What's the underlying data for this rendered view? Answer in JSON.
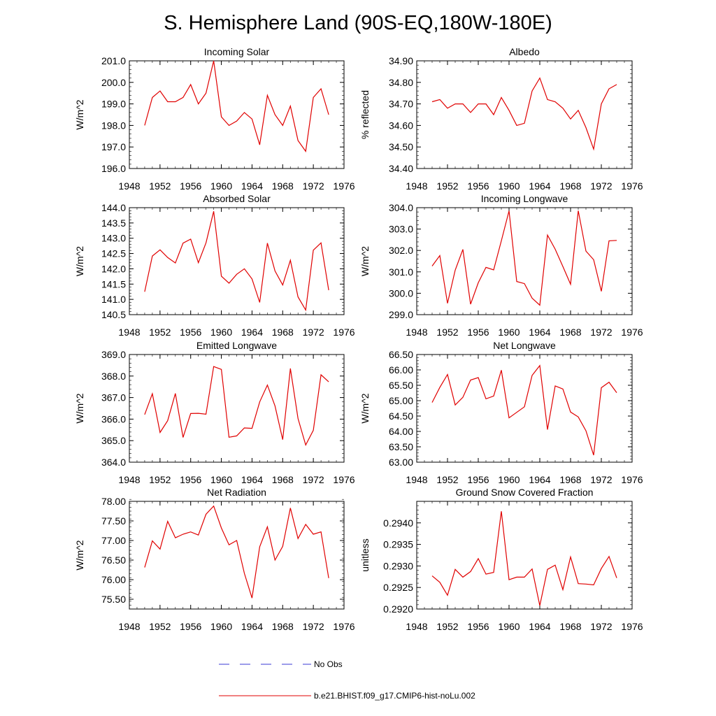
{
  "figure": {
    "title": "S. Hemisphere Land (90S-EQ,180W-180E)",
    "legend": [
      {
        "label": "No Obs",
        "color": "#3a3ad6",
        "style": "dashed"
      },
      {
        "label": "b.e21.BHIST.f09_g17.CMIP6-hist-noLu.002",
        "color": "#e00000",
        "style": "solid"
      }
    ]
  },
  "chart_data": [
    {
      "type": "line",
      "title": "Incoming Solar",
      "ylabel": "W/m^2",
      "xlim": [
        1948,
        1976
      ],
      "ylim": [
        196.0,
        201.0
      ],
      "x_ticks": [
        "1948",
        "1952",
        "1956",
        "1960",
        "1964",
        "1968",
        "1972",
        "1976"
      ],
      "y_ticks": [
        "196.0",
        "197.0",
        "198.0",
        "199.0",
        "200.0",
        "201.0"
      ],
      "series": [
        {
          "color": "#e00000",
          "x": [
            1950,
            1951,
            1952,
            1953,
            1954,
            1955,
            1956,
            1957,
            1958,
            1959,
            1960,
            1961,
            1962,
            1963,
            1964,
            1965,
            1966,
            1967,
            1968,
            1969,
            1970,
            1971,
            1972,
            1973,
            1974
          ],
          "y": [
            198.0,
            199.3,
            199.6,
            199.1,
            199.1,
            199.3,
            199.9,
            199.0,
            199.5,
            201.0,
            198.4,
            198.0,
            198.2,
            198.6,
            198.3,
            197.1,
            199.4,
            198.5,
            198.0,
            198.9,
            197.3,
            196.8,
            199.3,
            199.7,
            198.5
          ]
        }
      ]
    },
    {
      "type": "line",
      "title": "Albedo",
      "ylabel": "% reflected",
      "xlim": [
        1948,
        1976
      ],
      "ylim": [
        34.4,
        34.9
      ],
      "x_ticks": [
        "1948",
        "1952",
        "1956",
        "1960",
        "1964",
        "1968",
        "1972",
        "1976"
      ],
      "y_ticks": [
        "34.40",
        "34.50",
        "34.60",
        "34.70",
        "34.80",
        "34.90"
      ],
      "series": [
        {
          "color": "#e00000",
          "x": [
            1950,
            1951,
            1952,
            1953,
            1954,
            1955,
            1956,
            1957,
            1958,
            1959,
            1960,
            1961,
            1962,
            1963,
            1964,
            1965,
            1966,
            1967,
            1968,
            1969,
            1970,
            1971,
            1972,
            1973,
            1974
          ],
          "y": [
            34.71,
            34.72,
            34.68,
            34.7,
            34.7,
            34.66,
            34.7,
            34.7,
            34.65,
            34.73,
            34.67,
            34.6,
            34.61,
            34.76,
            34.82,
            34.72,
            34.71,
            34.68,
            34.63,
            34.67,
            34.59,
            34.49,
            34.7,
            34.77,
            34.79
          ]
        }
      ]
    },
    {
      "type": "line",
      "title": "Absorbed Solar",
      "ylabel": "W/m^2",
      "xlim": [
        1948,
        1976
      ],
      "ylim": [
        140.5,
        144.0
      ],
      "x_ticks": [
        "1948",
        "1952",
        "1956",
        "1960",
        "1964",
        "1968",
        "1972",
        "1976"
      ],
      "y_ticks": [
        "140.5",
        "141.0",
        "141.5",
        "142.0",
        "142.5",
        "143.0",
        "143.5",
        "144.0"
      ],
      "series": [
        {
          "color": "#e00000",
          "x": [
            1950,
            1951,
            1952,
            1953,
            1954,
            1955,
            1956,
            1957,
            1958,
            1959,
            1960,
            1961,
            1962,
            1963,
            1964,
            1965,
            1966,
            1967,
            1968,
            1969,
            1970,
            1971,
            1972,
            1973,
            1974
          ],
          "y": [
            141.25,
            142.42,
            142.62,
            142.37,
            142.19,
            142.84,
            142.97,
            142.2,
            142.85,
            143.88,
            141.76,
            141.53,
            141.82,
            142.0,
            141.67,
            140.9,
            142.84,
            141.93,
            141.47,
            142.28,
            141.08,
            140.65,
            142.61,
            142.85,
            141.3
          ]
        }
      ]
    },
    {
      "type": "line",
      "title": "Incoming Longwave",
      "ylabel": "W/m^2",
      "xlim": [
        1948,
        1976
      ],
      "ylim": [
        299.0,
        304.0
      ],
      "x_ticks": [
        "1948",
        "1952",
        "1956",
        "1960",
        "1964",
        "1968",
        "1972",
        "1976"
      ],
      "y_ticks": [
        "299.0",
        "300.0",
        "301.0",
        "302.0",
        "303.0",
        "304.0"
      ],
      "series": [
        {
          "color": "#e00000",
          "x": [
            1950,
            1951,
            1952,
            1953,
            1954,
            1955,
            1956,
            1957,
            1958,
            1959,
            1960,
            1961,
            1962,
            1963,
            1964,
            1965,
            1966,
            1967,
            1968,
            1969,
            1970,
            1971,
            1972,
            1973,
            1974
          ],
          "y": [
            301.27,
            301.76,
            299.53,
            301.08,
            302.05,
            299.49,
            300.49,
            301.21,
            301.09,
            302.45,
            303.85,
            300.55,
            300.45,
            299.77,
            299.44,
            302.72,
            302.06,
            301.25,
            300.42,
            303.86,
            301.97,
            301.57,
            300.09,
            302.45,
            302.47
          ]
        }
      ]
    },
    {
      "type": "line",
      "title": "Emitted Longwave",
      "ylabel": "W/m^2",
      "xlim": [
        1948,
        1976
      ],
      "ylim": [
        364.0,
        369.0
      ],
      "x_ticks": [
        "1948",
        "1952",
        "1956",
        "1960",
        "1964",
        "1968",
        "1972",
        "1976"
      ],
      "y_ticks": [
        "364.0",
        "365.0",
        "366.0",
        "367.0",
        "368.0",
        "369.0"
      ],
      "series": [
        {
          "color": "#e00000",
          "x": [
            1950,
            1951,
            1952,
            1953,
            1954,
            1955,
            1956,
            1957,
            1958,
            1959,
            1960,
            1961,
            1962,
            1963,
            1964,
            1965,
            1966,
            1967,
            1968,
            1969,
            1970,
            1971,
            1972,
            1973,
            1974
          ],
          "y": [
            366.21,
            367.18,
            365.38,
            365.93,
            367.19,
            365.15,
            366.26,
            366.27,
            366.23,
            368.44,
            368.31,
            365.16,
            365.22,
            365.59,
            365.57,
            366.8,
            367.58,
            366.61,
            365.05,
            368.35,
            366.03,
            364.8,
            365.48,
            368.06,
            367.73
          ]
        }
      ]
    },
    {
      "type": "line",
      "title": "Net Longwave",
      "ylabel": "W/m^2",
      "xlim": [
        1948,
        1976
      ],
      "ylim": [
        63.0,
        66.5
      ],
      "x_ticks": [
        "1948",
        "1952",
        "1956",
        "1960",
        "1964",
        "1968",
        "1972",
        "1976"
      ],
      "y_ticks": [
        "63.00",
        "63.50",
        "64.00",
        "64.50",
        "65.00",
        "65.50",
        "66.00",
        "66.50"
      ],
      "series": [
        {
          "color": "#e00000",
          "x": [
            1950,
            1951,
            1952,
            1953,
            1954,
            1955,
            1956,
            1957,
            1958,
            1959,
            1960,
            1961,
            1962,
            1963,
            1964,
            1965,
            1966,
            1967,
            1968,
            1969,
            1970,
            1971,
            1972,
            1973,
            1974
          ],
          "y": [
            64.94,
            65.43,
            65.85,
            64.86,
            65.11,
            65.67,
            65.75,
            65.06,
            65.15,
            65.99,
            64.44,
            64.62,
            64.8,
            65.82,
            66.14,
            64.06,
            65.48,
            65.38,
            64.63,
            64.47,
            64.02,
            63.23,
            65.42,
            65.6,
            65.26
          ]
        }
      ]
    },
    {
      "type": "line",
      "title": "Net Radiation",
      "ylabel": "W/m^2",
      "xlim": [
        1948,
        1976
      ],
      "ylim": [
        75.25,
        78.0
      ],
      "x_ticks": [
        "1948",
        "1952",
        "1956",
        "1960",
        "1964",
        "1968",
        "1972",
        "1976"
      ],
      "y_ticks": [
        "75.50",
        "76.00",
        "76.50",
        "77.00",
        "77.50",
        "78.00"
      ],
      "series": [
        {
          "color": "#e00000",
          "x": [
            1950,
            1951,
            1952,
            1953,
            1954,
            1955,
            1956,
            1957,
            1958,
            1959,
            1960,
            1961,
            1962,
            1963,
            1964,
            1965,
            1966,
            1967,
            1968,
            1969,
            1970,
            1971,
            1972,
            1973,
            1974
          ],
          "y": [
            76.31,
            76.99,
            76.78,
            77.49,
            77.07,
            77.16,
            77.22,
            77.14,
            77.67,
            77.88,
            77.32,
            76.89,
            77.0,
            76.16,
            75.53,
            76.84,
            77.35,
            76.5,
            76.85,
            77.83,
            77.05,
            77.41,
            77.16,
            77.22,
            76.04
          ]
        }
      ]
    },
    {
      "type": "line",
      "title": "Ground Snow Covered Fraction",
      "ylabel": "unitless",
      "xlim": [
        1948,
        1976
      ],
      "ylim": [
        0.292,
        0.2945
      ],
      "x_ticks": [
        "1948",
        "1952",
        "1956",
        "1960",
        "1964",
        "1968",
        "1972",
        "1976"
      ],
      "y_ticks": [
        "0.2920",
        "0.2925",
        "0.2930",
        "0.2935",
        "0.2940"
      ],
      "series": [
        {
          "color": "#e00000",
          "x": [
            1950,
            1951,
            1952,
            1953,
            1954,
            1955,
            1956,
            1957,
            1958,
            1959,
            1960,
            1961,
            1962,
            1963,
            1964,
            1965,
            1966,
            1967,
            1968,
            1969,
            1970,
            1971,
            1972,
            1973,
            1974
          ],
          "y": [
            0.29277,
            0.29262,
            0.29232,
            0.29292,
            0.29274,
            0.29287,
            0.29317,
            0.29281,
            0.29285,
            0.29427,
            0.29268,
            0.29274,
            0.29274,
            0.29293,
            0.29208,
            0.29292,
            0.29302,
            0.29245,
            0.29321,
            0.29259,
            0.29258,
            0.29256,
            0.29294,
            0.29322,
            0.29272
          ]
        }
      ]
    }
  ]
}
